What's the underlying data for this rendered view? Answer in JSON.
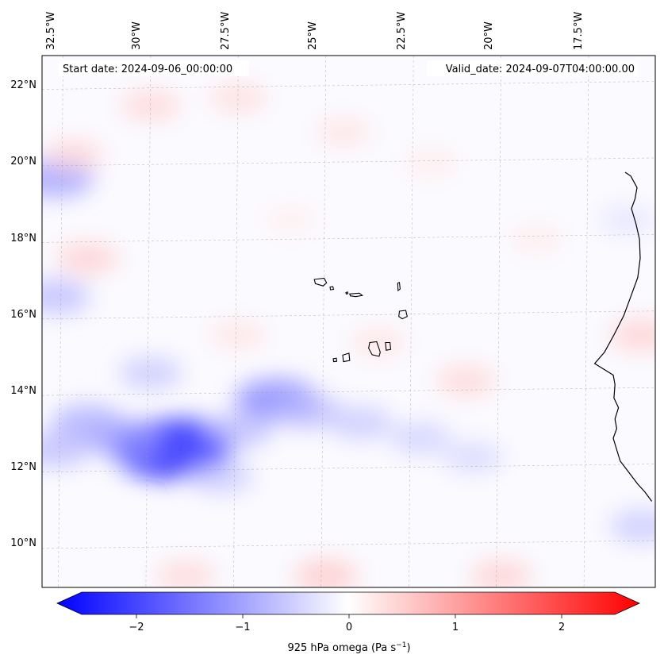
{
  "header": {
    "start_date": "Start date: 2024-09-06_00:00:00",
    "valid_date": "Valid_date: 2024-09-07T04:00:00.00"
  },
  "axes": {
    "lon_ticks": [
      "32.5°W",
      "30°W",
      "27.5°W",
      "25°W",
      "22.5°W",
      "20°W",
      "17.5°W"
    ],
    "lat_ticks": [
      "22°N",
      "20°N",
      "18°N",
      "16°N",
      "14°N",
      "12°N",
      "10°N"
    ],
    "lon_range": [
      -33.1,
      -15.6
    ],
    "lat_range": [
      8.9,
      22.8
    ]
  },
  "colorbar": {
    "label_main": "925 hPa omega (Pa s",
    "label_sup": "−1",
    "label_end": ")",
    "ticks": [
      "−2",
      "−1",
      "0",
      "1",
      "2"
    ],
    "vmin": -2.5,
    "vmax": 2.5,
    "cmap": "bwr",
    "colors": {
      "low": "#0000ff",
      "mid": "#ffffff",
      "high": "#ff0000"
    }
  },
  "field_blobs": [
    {
      "lon": -29.4,
      "lat": 12.5,
      "value": -1.8
    },
    {
      "lon": -29.0,
      "lat": 12.7,
      "value": -1.2
    },
    {
      "lon": -30.8,
      "lat": 12.8,
      "value": -0.7
    },
    {
      "lon": -31.8,
      "lat": 13.2,
      "value": -0.6
    },
    {
      "lon": -30.0,
      "lat": 14.5,
      "value": -0.4
    },
    {
      "lon": -26.4,
      "lat": 13.8,
      "value": -0.9
    },
    {
      "lon": -25.5,
      "lat": 13.5,
      "value": -0.5
    },
    {
      "lon": -27.5,
      "lat": 13.0,
      "value": -0.5
    },
    {
      "lon": -24.0,
      "lat": 13.2,
      "value": -0.4
    },
    {
      "lon": -22.3,
      "lat": 12.8,
      "value": -0.35
    },
    {
      "lon": -20.8,
      "lat": 12.3,
      "value": -0.3
    },
    {
      "lon": -28.0,
      "lat": 11.8,
      "value": -0.4
    },
    {
      "lon": -32.7,
      "lat": 19.6,
      "value": -0.7
    },
    {
      "lon": -32.7,
      "lat": 16.5,
      "value": -0.5
    },
    {
      "lon": -32.7,
      "lat": 12.5,
      "value": -0.5
    },
    {
      "lon": -16.0,
      "lat": 10.5,
      "value": -0.4
    },
    {
      "lon": -16.4,
      "lat": 18.5,
      "value": -0.2
    },
    {
      "lon": -31.8,
      "lat": 17.5,
      "value": 0.35
    },
    {
      "lon": -30.0,
      "lat": 21.5,
      "value": 0.3
    },
    {
      "lon": -27.5,
      "lat": 21.7,
      "value": 0.25
    },
    {
      "lon": -24.5,
      "lat": 20.8,
      "value": 0.2
    },
    {
      "lon": -22.0,
      "lat": 20.0,
      "value": 0.15
    },
    {
      "lon": -21.0,
      "lat": 14.3,
      "value": 0.3
    },
    {
      "lon": -23.5,
      "lat": 15.3,
      "value": 0.2
    },
    {
      "lon": -27.5,
      "lat": 15.5,
      "value": 0.2
    },
    {
      "lon": -25.0,
      "lat": 9.2,
      "value": 0.4
    },
    {
      "lon": -20.0,
      "lat": 9.2,
      "value": 0.35
    },
    {
      "lon": -29.0,
      "lat": 9.2,
      "value": 0.3
    },
    {
      "lon": -16.0,
      "lat": 15.5,
      "value": 0.35
    },
    {
      "lon": -32.2,
      "lat": 20.2,
      "value": 0.3
    },
    {
      "lon": -19.0,
      "lat": 18.0,
      "value": 0.15
    },
    {
      "lon": -26.0,
      "lat": 18.5,
      "value": 0.12
    }
  ],
  "islands": [
    [
      [
        -25.33,
        16.95
      ],
      [
        -25.05,
        16.98
      ],
      [
        -24.98,
        16.86
      ],
      [
        -25.08,
        16.78
      ],
      [
        -25.3,
        16.84
      ]
    ],
    [
      [
        -24.88,
        16.75
      ],
      [
        -24.8,
        16.76
      ],
      [
        -24.78,
        16.69
      ],
      [
        -24.87,
        16.68
      ]
    ],
    [
      [
        -24.43,
        16.61
      ],
      [
        -24.38,
        16.62
      ],
      [
        -24.37,
        16.58
      ],
      [
        -24.42,
        16.57
      ]
    ],
    [
      [
        -24.32,
        16.57
      ],
      [
        -24.05,
        16.59
      ],
      [
        -23.96,
        16.53
      ],
      [
        -24.15,
        16.5
      ],
      [
        -24.3,
        16.52
      ]
    ],
    [
      [
        -22.95,
        16.85
      ],
      [
        -22.9,
        16.87
      ],
      [
        -22.88,
        16.7
      ],
      [
        -22.94,
        16.66
      ]
    ],
    [
      [
        -22.9,
        16.12
      ],
      [
        -22.72,
        16.14
      ],
      [
        -22.68,
        15.98
      ],
      [
        -22.82,
        15.92
      ],
      [
        -22.92,
        15.98
      ]
    ],
    [
      [
        -23.75,
        15.3
      ],
      [
        -23.55,
        15.32
      ],
      [
        -23.45,
        15.05
      ],
      [
        -23.48,
        14.94
      ],
      [
        -23.68,
        14.98
      ],
      [
        -23.78,
        15.15
      ]
    ],
    [
      [
        -23.3,
        15.3
      ],
      [
        -23.17,
        15.3
      ],
      [
        -23.15,
        15.12
      ],
      [
        -23.28,
        15.1
      ]
    ],
    [
      [
        -24.52,
        14.97
      ],
      [
        -24.34,
        15.02
      ],
      [
        -24.32,
        14.83
      ],
      [
        -24.5,
        14.8
      ]
    ],
    [
      [
        -24.79,
        14.88
      ],
      [
        -24.7,
        14.89
      ],
      [
        -24.69,
        14.81
      ],
      [
        -24.78,
        14.8
      ]
    ]
  ],
  "coast": [
    [
      -16.46,
      19.75
    ],
    [
      -16.3,
      19.65
    ],
    [
      -16.12,
      19.35
    ],
    [
      -16.18,
      19.05
    ],
    [
      -16.28,
      18.8
    ],
    [
      -16.15,
      18.4
    ],
    [
      -16.05,
      18.0
    ],
    [
      -16.03,
      17.5
    ],
    [
      -16.1,
      17.0
    ],
    [
      -16.3,
      16.5
    ],
    [
      -16.5,
      16.0
    ],
    [
      -16.78,
      15.5
    ],
    [
      -17.05,
      15.05
    ],
    [
      -17.33,
      14.75
    ],
    [
      -17.1,
      14.62
    ],
    [
      -16.8,
      14.45
    ],
    [
      -16.75,
      14.2
    ],
    [
      -16.78,
      13.85
    ],
    [
      -16.65,
      13.6
    ],
    [
      -16.75,
      13.3
    ],
    [
      -16.7,
      13.05
    ],
    [
      -16.8,
      12.8
    ],
    [
      -16.7,
      12.5
    ],
    [
      -16.6,
      12.2
    ],
    [
      -16.35,
      11.9
    ],
    [
      -16.1,
      11.6
    ],
    [
      -15.9,
      11.4
    ],
    [
      -15.7,
      11.15
    ]
  ]
}
